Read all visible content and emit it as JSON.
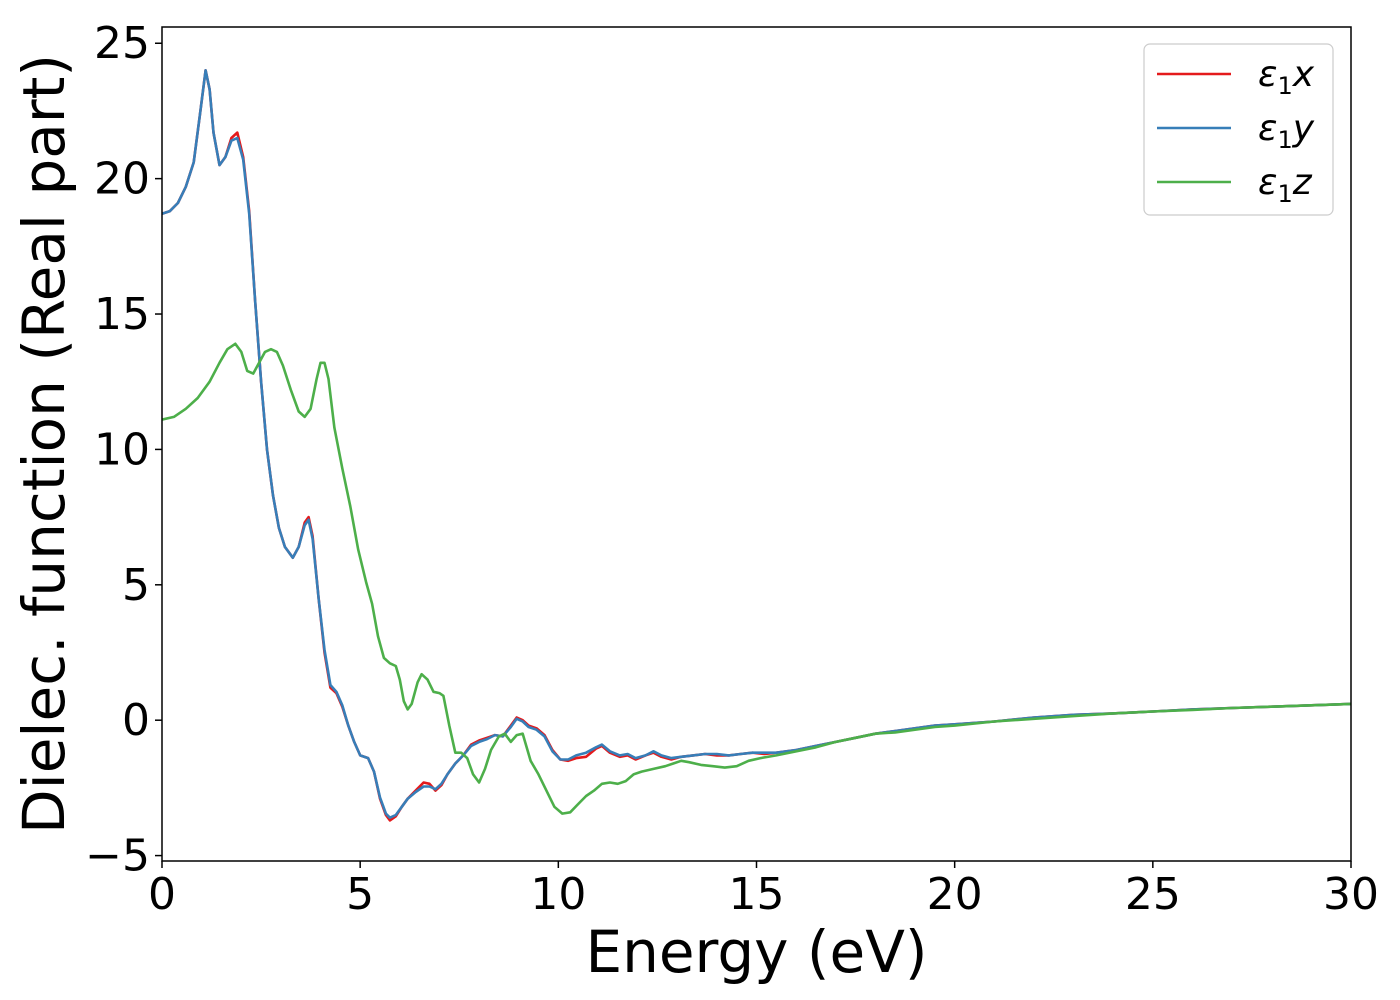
{
  "chart_data": {
    "type": "line",
    "title": "",
    "xlabel": "Energy (eV)",
    "ylabel": "Dielec. function (Real part)",
    "xlim": [
      0,
      30
    ],
    "ylim": [
      -5.2,
      25.6
    ],
    "xticks": [
      0,
      5,
      10,
      15,
      20,
      25,
      30
    ],
    "yticks": [
      -5,
      0,
      5,
      10,
      15,
      20,
      25
    ],
    "xtick_labels": [
      "0",
      "5",
      "10",
      "15",
      "20",
      "25",
      "30"
    ],
    "ytick_labels": [
      "−5",
      "0",
      "5",
      "10",
      "15",
      "20",
      "25"
    ],
    "grid": false,
    "legend_position": "top-right",
    "series": [
      {
        "name": "x",
        "legend_symbol": "ε",
        "legend_subscript": "1",
        "legend_suffix": "x",
        "color": "#e41a1c",
        "points": [
          [
            0,
            18.7
          ],
          [
            0.2,
            18.8
          ],
          [
            0.4,
            19.1
          ],
          [
            0.6,
            19.7
          ],
          [
            0.8,
            20.6
          ],
          [
            0.95,
            22.3
          ],
          [
            1.1,
            24.0
          ],
          [
            1.2,
            23.3
          ],
          [
            1.3,
            21.7
          ],
          [
            1.45,
            20.5
          ],
          [
            1.6,
            20.8
          ],
          [
            1.75,
            21.5
          ],
          [
            1.9,
            21.7
          ],
          [
            2.05,
            20.8
          ],
          [
            2.2,
            18.8
          ],
          [
            2.35,
            15.5
          ],
          [
            2.5,
            12.5
          ],
          [
            2.65,
            10.0
          ],
          [
            2.8,
            8.3
          ],
          [
            2.95,
            7.1
          ],
          [
            3.1,
            6.4
          ],
          [
            3.3,
            6.0
          ],
          [
            3.45,
            6.4
          ],
          [
            3.6,
            7.3
          ],
          [
            3.7,
            7.5
          ],
          [
            3.8,
            6.8
          ],
          [
            3.95,
            4.5
          ],
          [
            4.1,
            2.5
          ],
          [
            4.25,
            1.2
          ],
          [
            4.4,
            1.0
          ],
          [
            4.55,
            0.5
          ],
          [
            4.7,
            -0.2
          ],
          [
            4.85,
            -0.8
          ],
          [
            5.0,
            -1.3
          ],
          [
            5.2,
            -1.4
          ],
          [
            5.35,
            -1.9
          ],
          [
            5.5,
            -2.9
          ],
          [
            5.65,
            -3.5
          ],
          [
            5.75,
            -3.7
          ],
          [
            5.9,
            -3.55
          ],
          [
            6.05,
            -3.2
          ],
          [
            6.2,
            -2.9
          ],
          [
            6.4,
            -2.6
          ],
          [
            6.6,
            -2.3
          ],
          [
            6.75,
            -2.35
          ],
          [
            6.9,
            -2.6
          ],
          [
            7.05,
            -2.4
          ],
          [
            7.2,
            -2.0
          ],
          [
            7.4,
            -1.6
          ],
          [
            7.6,
            -1.3
          ],
          [
            7.8,
            -0.9
          ],
          [
            8.0,
            -0.75
          ],
          [
            8.2,
            -0.65
          ],
          [
            8.4,
            -0.55
          ],
          [
            8.6,
            -0.6
          ],
          [
            8.8,
            -0.2
          ],
          [
            8.95,
            0.1
          ],
          [
            9.1,
            0.0
          ],
          [
            9.25,
            -0.2
          ],
          [
            9.45,
            -0.3
          ],
          [
            9.65,
            -0.55
          ],
          [
            9.85,
            -1.1
          ],
          [
            10.05,
            -1.45
          ],
          [
            10.25,
            -1.5
          ],
          [
            10.45,
            -1.4
          ],
          [
            10.7,
            -1.35
          ],
          [
            10.95,
            -1.05
          ],
          [
            11.1,
            -0.95
          ],
          [
            11.3,
            -1.2
          ],
          [
            11.55,
            -1.35
          ],
          [
            11.75,
            -1.3
          ],
          [
            11.95,
            -1.45
          ],
          [
            12.2,
            -1.3
          ],
          [
            12.4,
            -1.2
          ],
          [
            12.6,
            -1.35
          ],
          [
            12.85,
            -1.45
          ],
          [
            13.1,
            -1.35
          ],
          [
            13.4,
            -1.3
          ],
          [
            13.7,
            -1.25
          ],
          [
            14.0,
            -1.3
          ],
          [
            14.3,
            -1.3
          ],
          [
            14.6,
            -1.25
          ],
          [
            14.9,
            -1.2
          ],
          [
            15.2,
            -1.25
          ],
          [
            15.5,
            -1.2
          ],
          [
            16.0,
            -1.1
          ],
          [
            16.5,
            -0.95
          ],
          [
            17.0,
            -0.8
          ],
          [
            17.5,
            -0.65
          ],
          [
            18.0,
            -0.5
          ],
          [
            18.5,
            -0.4
          ],
          [
            19.0,
            -0.3
          ],
          [
            19.5,
            -0.2
          ],
          [
            20.0,
            -0.15
          ],
          [
            21.0,
            -0.05
          ],
          [
            22.0,
            0.1
          ],
          [
            23.0,
            0.2
          ],
          [
            24.0,
            0.25
          ],
          [
            25.0,
            0.32
          ],
          [
            26.0,
            0.4
          ],
          [
            27.0,
            0.45
          ],
          [
            28.0,
            0.5
          ],
          [
            29.0,
            0.55
          ],
          [
            30.0,
            0.6
          ]
        ]
      },
      {
        "name": "y",
        "legend_symbol": "ε",
        "legend_subscript": "1",
        "legend_suffix": "y",
        "color": "#377eb8",
        "points": [
          [
            0,
            18.7
          ],
          [
            0.2,
            18.8
          ],
          [
            0.4,
            19.1
          ],
          [
            0.6,
            19.7
          ],
          [
            0.8,
            20.6
          ],
          [
            0.95,
            22.3
          ],
          [
            1.1,
            24.0
          ],
          [
            1.2,
            23.3
          ],
          [
            1.3,
            21.7
          ],
          [
            1.45,
            20.5
          ],
          [
            1.6,
            20.8
          ],
          [
            1.75,
            21.4
          ],
          [
            1.9,
            21.5
          ],
          [
            2.05,
            20.7
          ],
          [
            2.2,
            18.7
          ],
          [
            2.35,
            15.5
          ],
          [
            2.5,
            12.5
          ],
          [
            2.65,
            10.0
          ],
          [
            2.8,
            8.3
          ],
          [
            2.95,
            7.1
          ],
          [
            3.1,
            6.4
          ],
          [
            3.3,
            6.0
          ],
          [
            3.45,
            6.4
          ],
          [
            3.6,
            7.2
          ],
          [
            3.7,
            7.4
          ],
          [
            3.8,
            6.7
          ],
          [
            3.95,
            4.5
          ],
          [
            4.1,
            2.6
          ],
          [
            4.25,
            1.3
          ],
          [
            4.4,
            1.05
          ],
          [
            4.55,
            0.55
          ],
          [
            4.7,
            -0.2
          ],
          [
            4.85,
            -0.8
          ],
          [
            5.0,
            -1.3
          ],
          [
            5.2,
            -1.4
          ],
          [
            5.35,
            -1.9
          ],
          [
            5.5,
            -2.85
          ],
          [
            5.65,
            -3.45
          ],
          [
            5.75,
            -3.6
          ],
          [
            5.9,
            -3.5
          ],
          [
            6.05,
            -3.2
          ],
          [
            6.2,
            -2.9
          ],
          [
            6.4,
            -2.65
          ],
          [
            6.6,
            -2.45
          ],
          [
            6.75,
            -2.45
          ],
          [
            6.9,
            -2.55
          ],
          [
            7.05,
            -2.35
          ],
          [
            7.2,
            -2.0
          ],
          [
            7.4,
            -1.6
          ],
          [
            7.6,
            -1.3
          ],
          [
            7.8,
            -0.95
          ],
          [
            8.0,
            -0.8
          ],
          [
            8.2,
            -0.7
          ],
          [
            8.4,
            -0.55
          ],
          [
            8.6,
            -0.6
          ],
          [
            8.8,
            -0.25
          ],
          [
            8.95,
            0.05
          ],
          [
            9.1,
            -0.05
          ],
          [
            9.25,
            -0.25
          ],
          [
            9.45,
            -0.35
          ],
          [
            9.65,
            -0.6
          ],
          [
            9.85,
            -1.15
          ],
          [
            10.05,
            -1.45
          ],
          [
            10.25,
            -1.45
          ],
          [
            10.45,
            -1.3
          ],
          [
            10.7,
            -1.2
          ],
          [
            10.95,
            -1.0
          ],
          [
            11.1,
            -0.9
          ],
          [
            11.3,
            -1.15
          ],
          [
            11.55,
            -1.3
          ],
          [
            11.75,
            -1.25
          ],
          [
            11.95,
            -1.4
          ],
          [
            12.2,
            -1.3
          ],
          [
            12.4,
            -1.15
          ],
          [
            12.6,
            -1.3
          ],
          [
            12.85,
            -1.4
          ],
          [
            13.1,
            -1.35
          ],
          [
            13.4,
            -1.3
          ],
          [
            13.7,
            -1.25
          ],
          [
            14.0,
            -1.25
          ],
          [
            14.3,
            -1.3
          ],
          [
            14.6,
            -1.25
          ],
          [
            14.9,
            -1.2
          ],
          [
            15.2,
            -1.2
          ],
          [
            15.5,
            -1.2
          ],
          [
            16.0,
            -1.1
          ],
          [
            16.5,
            -0.95
          ],
          [
            17.0,
            -0.8
          ],
          [
            17.5,
            -0.65
          ],
          [
            18.0,
            -0.5
          ],
          [
            18.5,
            -0.4
          ],
          [
            19.0,
            -0.3
          ],
          [
            19.5,
            -0.2
          ],
          [
            20.0,
            -0.15
          ],
          [
            21.0,
            -0.05
          ],
          [
            22.0,
            0.1
          ],
          [
            23.0,
            0.2
          ],
          [
            24.0,
            0.25
          ],
          [
            25.0,
            0.32
          ],
          [
            26.0,
            0.4
          ],
          [
            27.0,
            0.45
          ],
          [
            28.0,
            0.5
          ],
          [
            29.0,
            0.55
          ],
          [
            30.0,
            0.6
          ]
        ]
      },
      {
        "name": "z",
        "legend_symbol": "ε",
        "legend_subscript": "1",
        "legend_suffix": "z",
        "color": "#4daf4a",
        "points": [
          [
            0,
            11.1
          ],
          [
            0.3,
            11.2
          ],
          [
            0.6,
            11.5
          ],
          [
            0.9,
            11.9
          ],
          [
            1.2,
            12.5
          ],
          [
            1.45,
            13.2
          ],
          [
            1.65,
            13.7
          ],
          [
            1.85,
            13.9
          ],
          [
            2.0,
            13.6
          ],
          [
            2.15,
            12.9
          ],
          [
            2.3,
            12.8
          ],
          [
            2.45,
            13.2
          ],
          [
            2.6,
            13.6
          ],
          [
            2.75,
            13.7
          ],
          [
            2.9,
            13.6
          ],
          [
            3.05,
            13.1
          ],
          [
            3.25,
            12.2
          ],
          [
            3.45,
            11.4
          ],
          [
            3.6,
            11.2
          ],
          [
            3.75,
            11.5
          ],
          [
            3.9,
            12.6
          ],
          [
            4.0,
            13.2
          ],
          [
            4.1,
            13.2
          ],
          [
            4.2,
            12.6
          ],
          [
            4.35,
            10.8
          ],
          [
            4.55,
            9.3
          ],
          [
            4.75,
            7.9
          ],
          [
            4.95,
            6.3
          ],
          [
            5.15,
            5.1
          ],
          [
            5.3,
            4.3
          ],
          [
            5.45,
            3.1
          ],
          [
            5.6,
            2.3
          ],
          [
            5.75,
            2.1
          ],
          [
            5.9,
            2.0
          ],
          [
            6.0,
            1.5
          ],
          [
            6.1,
            0.7
          ],
          [
            6.2,
            0.4
          ],
          [
            6.3,
            0.6
          ],
          [
            6.45,
            1.4
          ],
          [
            6.55,
            1.7
          ],
          [
            6.7,
            1.5
          ],
          [
            6.85,
            1.05
          ],
          [
            7.0,
            1.0
          ],
          [
            7.1,
            0.9
          ],
          [
            7.25,
            -0.2
          ],
          [
            7.4,
            -1.2
          ],
          [
            7.55,
            -1.2
          ],
          [
            7.7,
            -1.4
          ],
          [
            7.85,
            -2.0
          ],
          [
            8.0,
            -2.3
          ],
          [
            8.15,
            -1.8
          ],
          [
            8.3,
            -1.1
          ],
          [
            8.5,
            -0.6
          ],
          [
            8.65,
            -0.5
          ],
          [
            8.8,
            -0.8
          ],
          [
            8.95,
            -0.55
          ],
          [
            9.1,
            -0.5
          ],
          [
            9.3,
            -1.5
          ],
          [
            9.5,
            -2.0
          ],
          [
            9.7,
            -2.6
          ],
          [
            9.9,
            -3.2
          ],
          [
            10.1,
            -3.45
          ],
          [
            10.3,
            -3.4
          ],
          [
            10.5,
            -3.1
          ],
          [
            10.7,
            -2.8
          ],
          [
            10.9,
            -2.6
          ],
          [
            11.1,
            -2.35
          ],
          [
            11.3,
            -2.3
          ],
          [
            11.5,
            -2.35
          ],
          [
            11.7,
            -2.25
          ],
          [
            11.9,
            -2.0
          ],
          [
            12.1,
            -1.9
          ],
          [
            12.4,
            -1.8
          ],
          [
            12.7,
            -1.7
          ],
          [
            12.9,
            -1.6
          ],
          [
            13.1,
            -1.5
          ],
          [
            13.3,
            -1.55
          ],
          [
            13.6,
            -1.65
          ],
          [
            13.9,
            -1.7
          ],
          [
            14.2,
            -1.75
          ],
          [
            14.5,
            -1.7
          ],
          [
            14.8,
            -1.5
          ],
          [
            15.1,
            -1.4
          ],
          [
            15.5,
            -1.3
          ],
          [
            16.0,
            -1.15
          ],
          [
            16.5,
            -1.0
          ],
          [
            17.0,
            -0.8
          ],
          [
            17.5,
            -0.65
          ],
          [
            18.0,
            -0.5
          ],
          [
            18.5,
            -0.45
          ],
          [
            19.0,
            -0.35
          ],
          [
            19.5,
            -0.25
          ],
          [
            20.0,
            -0.2
          ],
          [
            21.0,
            -0.05
          ],
          [
            22.0,
            0.05
          ],
          [
            23.0,
            0.15
          ],
          [
            24.0,
            0.25
          ],
          [
            25.0,
            0.32
          ],
          [
            26.0,
            0.38
          ],
          [
            27.0,
            0.45
          ],
          [
            28.0,
            0.5
          ],
          [
            29.0,
            0.55
          ],
          [
            30.0,
            0.6
          ]
        ]
      }
    ]
  }
}
